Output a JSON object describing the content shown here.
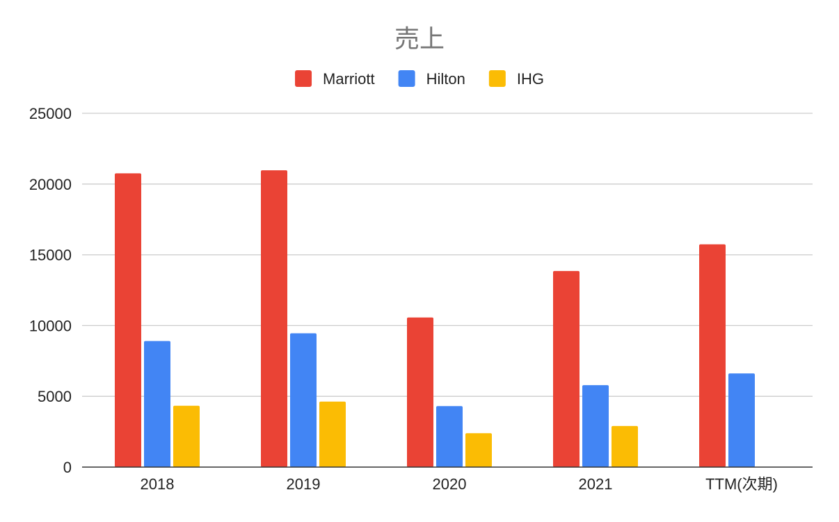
{
  "chart_data": {
    "type": "bar",
    "title": "売上",
    "xlabel": "",
    "ylabel": "",
    "categories": [
      "2018",
      "2019",
      "2020",
      "2021",
      "TTM(次期)"
    ],
    "series": [
      {
        "name": "Marriott",
        "color": "#ea4335",
        "values": [
          20758,
          20972,
          10571,
          13857,
          15744
        ]
      },
      {
        "name": "Hilton",
        "color": "#4285f4",
        "values": [
          8906,
          9452,
          4307,
          5788,
          6617
        ]
      },
      {
        "name": "IHG",
        "color": "#fbbc04",
        "values": [
          4337,
          4627,
          2394,
          2907,
          null
        ]
      }
    ],
    "ylim": [
      0,
      25000
    ],
    "yticks": [
      0,
      5000,
      10000,
      15000,
      20000,
      25000
    ],
    "grid": true,
    "legend_position": "top-center"
  }
}
